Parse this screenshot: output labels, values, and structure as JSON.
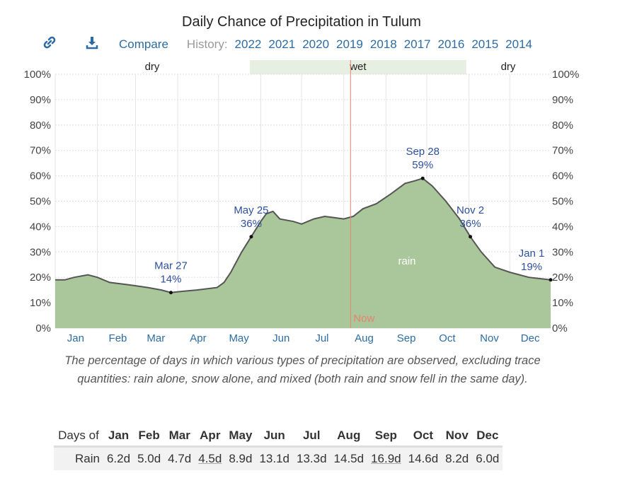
{
  "title": "Daily Chance of Precipitation in Tulum",
  "toolbar": {
    "link_icon": "link-icon",
    "download_icon": "download-icon",
    "compare": "Compare",
    "history_label": "History:",
    "years": [
      "2022",
      "2021",
      "2020",
      "2019",
      "2018",
      "2017",
      "2016",
      "2015",
      "2014"
    ]
  },
  "chart_data": {
    "type": "area",
    "title": "Daily Chance of Precipitation in Tulum",
    "ylim": [
      0,
      100
    ],
    "yticks": [
      "0%",
      "10%",
      "20%",
      "30%",
      "40%",
      "50%",
      "60%",
      "70%",
      "80%",
      "90%",
      "100%"
    ],
    "xticks": [
      "Jan",
      "Feb",
      "Mar",
      "Apr",
      "May",
      "Jun",
      "Jul",
      "Aug",
      "Sep",
      "Oct",
      "Nov",
      "Dec"
    ],
    "grid": true,
    "series": [
      {
        "name": "rain",
        "color": "#a9c79a",
        "points": [
          [
            "Jan 1",
            19
          ],
          [
            "Jan 8",
            19
          ],
          [
            "Jan 15",
            20
          ],
          [
            "Jan 25",
            21
          ],
          [
            "Feb 1",
            20
          ],
          [
            "Feb 10",
            18
          ],
          [
            "Feb 25",
            17
          ],
          [
            "Mar 10",
            16
          ],
          [
            "Mar 20",
            15
          ],
          [
            "Mar 27",
            14
          ],
          [
            "Apr 5",
            14.5
          ],
          [
            "Apr 15",
            15
          ],
          [
            "Apr 30",
            16
          ],
          [
            "May 5",
            18
          ],
          [
            "May 10",
            22
          ],
          [
            "May 18",
            30
          ],
          [
            "May 25",
            36
          ],
          [
            "Jun 1",
            42
          ],
          [
            "Jun 5",
            45
          ],
          [
            "Jun 10",
            46
          ],
          [
            "Jun 15",
            43
          ],
          [
            "Jun 25",
            42
          ],
          [
            "Jul 1",
            41
          ],
          [
            "Jul 10",
            43
          ],
          [
            "Jul 18",
            44
          ],
          [
            "Jul 25",
            43.5
          ],
          [
            "Aug 1",
            43
          ],
          [
            "Aug 8",
            44
          ],
          [
            "Aug 15",
            47
          ],
          [
            "Aug 25",
            49
          ],
          [
            "Sep 5",
            53
          ],
          [
            "Sep 15",
            57
          ],
          [
            "Sep 22",
            58
          ],
          [
            "Sep 28",
            59
          ],
          [
            "Oct 5",
            56
          ],
          [
            "Oct 15",
            50
          ],
          [
            "Oct 25",
            43
          ],
          [
            "Nov 2",
            36
          ],
          [
            "Nov 10",
            30
          ],
          [
            "Nov 20",
            24
          ],
          [
            "Dec 1",
            22
          ],
          [
            "Dec 15",
            20
          ],
          [
            "Dec 31",
            19
          ]
        ]
      }
    ],
    "annotations": [
      {
        "date": "Mar 27",
        "label": "Mar 27",
        "value": "14%",
        "v": 14
      },
      {
        "date": "May 25",
        "label": "May 25",
        "value": "36%",
        "v": 36
      },
      {
        "date": "Sep 28",
        "label": "Sep 28",
        "value": "59%",
        "v": 59
      },
      {
        "date": "Nov 2",
        "label": "Nov 2",
        "value": "36%",
        "v": 36
      },
      {
        "date": "Dec 31",
        "label": "Jan 1",
        "value": "19%",
        "v": 19
      }
    ],
    "series_label": "rain",
    "seasons": [
      {
        "label": "dry"
      },
      {
        "label": "wet",
        "from": "May 24",
        "to": "Oct 30"
      },
      {
        "label": "dry"
      }
    ],
    "now": {
      "label": "Now",
      "date": "Aug 6",
      "color": "#e8826e"
    }
  },
  "caption": "The percentage of days in which various types of precipitation are observed, excluding trace quantities: rain alone, snow alone, and mixed (both rain and snow fell in the same day).",
  "table": {
    "header": "Days of",
    "months": [
      "Jan",
      "Feb",
      "Mar",
      "Apr",
      "May",
      "Jun",
      "Jul",
      "Aug",
      "Sep",
      "Oct",
      "Nov",
      "Dec"
    ],
    "rows": [
      {
        "label": "Rain",
        "values": [
          "6.2d",
          "5.0d",
          "4.7d",
          "4.5d",
          "8.9d",
          "13.1d",
          "13.3d",
          "14.5d",
          "16.9d",
          "14.6d",
          "8.2d",
          "6.0d"
        ]
      }
    ]
  }
}
